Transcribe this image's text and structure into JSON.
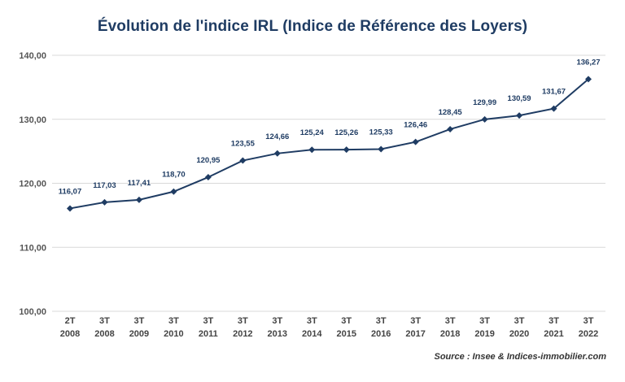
{
  "chart_data": {
    "type": "line",
    "title": "Évolution de l'indice IRL (Indice de Référence des Loyers)",
    "source": "Source : Insee & Indices-immobilier.com",
    "categories": [
      [
        "2T",
        "2008"
      ],
      [
        "3T",
        "2008"
      ],
      [
        "3T",
        "2009"
      ],
      [
        "3T",
        "2010"
      ],
      [
        "3T",
        "2011"
      ],
      [
        "3T",
        "2012"
      ],
      [
        "3T",
        "2013"
      ],
      [
        "3T",
        "2014"
      ],
      [
        "3T",
        "2015"
      ],
      [
        "3T",
        "2016"
      ],
      [
        "3T",
        "2017"
      ],
      [
        "3T",
        "2018"
      ],
      [
        "3T",
        "2019"
      ],
      [
        "3T",
        "2020"
      ],
      [
        "3T",
        "2021"
      ],
      [
        "3T",
        "2022"
      ]
    ],
    "values": [
      116.07,
      117.03,
      117.41,
      118.7,
      120.95,
      123.55,
      124.66,
      125.24,
      125.26,
      125.33,
      126.46,
      128.45,
      129.99,
      130.59,
      131.67,
      136.27
    ],
    "value_labels": [
      "116,07",
      "117,03",
      "117,41",
      "118,70",
      "120,95",
      "123,55",
      "124,66",
      "125,24",
      "125,26",
      "125,33",
      "126,46",
      "128,45",
      "129,99",
      "130,59",
      "131,67",
      "136,27"
    ],
    "yticks": [
      100,
      110,
      120,
      130,
      140
    ],
    "ytick_labels": [
      "100,00",
      "110,00",
      "120,00",
      "130,00",
      "140,00"
    ],
    "ylim": [
      100,
      140
    ],
    "xlabel": "",
    "ylabel": "",
    "grid": true,
    "legend": "none",
    "colors": {
      "line": "#1f3c63",
      "grid": "#d9d9d9",
      "title": "#1f3c63"
    }
  }
}
